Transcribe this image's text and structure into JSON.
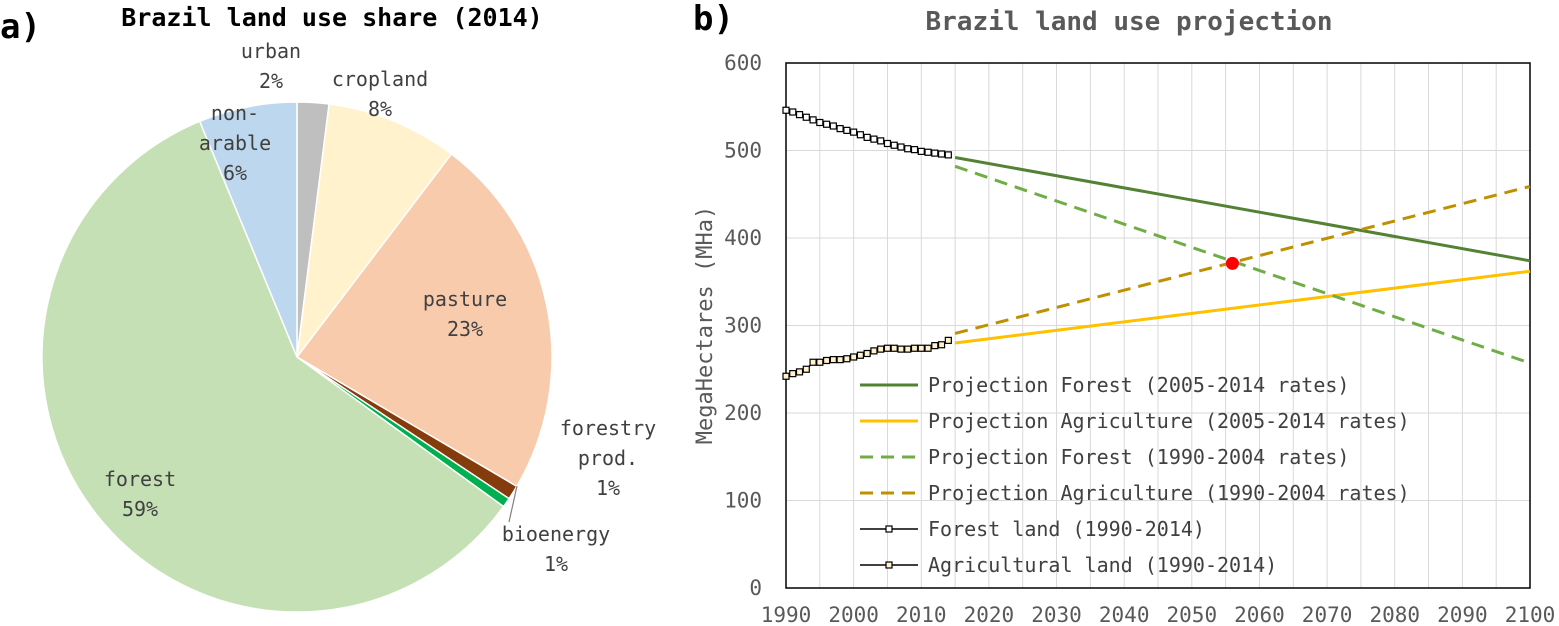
{
  "panels": {
    "a": "a)",
    "b": "b)"
  },
  "chart_data": [
    {
      "type": "pie",
      "title": "Brazil land use share (2014)",
      "slices": [
        {
          "label": [
            "urban",
            "2%"
          ],
          "value": 2,
          "color": "#BFBFBF"
        },
        {
          "label": [
            "cropland",
            "8%"
          ],
          "value": 8.3,
          "color": "#FFF2CC"
        },
        {
          "label": [
            "pasture",
            "23%"
          ],
          "value": 23,
          "color": "#F8CBAD"
        },
        {
          "label": [
            "forestry",
            "prod.",
            "1%"
          ],
          "value": 0.9,
          "color": "#843C0C"
        },
        {
          "label": [
            "bioenergy",
            "1%"
          ],
          "value": 0.6,
          "color": "#00B050"
        },
        {
          "label": [
            "forest",
            "59%"
          ],
          "value": 58.5,
          "color": "#C5E0B4"
        },
        {
          "label": [
            "non-",
            "arable",
            "6%"
          ],
          "value": 6.2,
          "color": "#BDD7EE"
        }
      ]
    },
    {
      "type": "line",
      "title": "Brazil land use projection",
      "ylabel": "MegaHectares (MHa)",
      "xlabel": "",
      "xlim": [
        1990,
        2100
      ],
      "ylim": [
        0,
        600
      ],
      "xticks": [
        "1990",
        "2000",
        "2010",
        "2020",
        "2030",
        "2040",
        "2050",
        "2060",
        "2070",
        "2080",
        "2090",
        "2100"
      ],
      "yticks": [
        "0",
        "100",
        "200",
        "300",
        "400",
        "500",
        "600"
      ],
      "grid": true,
      "legend_position": "lower-left",
      "series": [
        {
          "name": "Projection Forest (2005-2014 rates)",
          "color": "#548235",
          "style": "solid",
          "marker": "none",
          "x": [
            2015,
            2100
          ],
          "y": [
            492,
            374
          ]
        },
        {
          "name": "Projection Agriculture (2005-2014 rates)",
          "color": "#FFC000",
          "style": "solid",
          "marker": "none",
          "x": [
            2015,
            2100
          ],
          "y": [
            280,
            362
          ]
        },
        {
          "name": "Projection Forest (1990-2004 rates)",
          "color": "#70AD47",
          "style": "dashed",
          "marker": "none",
          "x": [
            2015,
            2100
          ],
          "y": [
            482,
            257
          ]
        },
        {
          "name": "Projection Agriculture (1990-2004 rates)",
          "color": "#BF9000",
          "style": "dashed",
          "marker": "none",
          "x": [
            2015,
            2100
          ],
          "y": [
            291,
            459
          ]
        },
        {
          "name": "Forest land (1990-2014)",
          "color": "#000000",
          "style": "solid",
          "marker": "square",
          "marker_fill": "#FFFFFF",
          "x": [
            1990,
            1991,
            1992,
            1993,
            1994,
            1995,
            1996,
            1997,
            1998,
            1999,
            2000,
            2001,
            2002,
            2003,
            2004,
            2005,
            2006,
            2007,
            2008,
            2009,
            2010,
            2011,
            2012,
            2013,
            2014
          ],
          "y": [
            546,
            544,
            541,
            538,
            535,
            532,
            530,
            528,
            525,
            523,
            521,
            518,
            515,
            513,
            511,
            508,
            506,
            504,
            502,
            501,
            499,
            498,
            497,
            496,
            495
          ]
        },
        {
          "name": "Agricultural land (1990-2014)",
          "color": "#000000",
          "style": "solid",
          "marker": "square",
          "marker_fill": "#FFF2CC",
          "x": [
            1990,
            1991,
            1992,
            1993,
            1994,
            1995,
            1996,
            1997,
            1998,
            1999,
            2000,
            2001,
            2002,
            2003,
            2004,
            2005,
            2006,
            2007,
            2008,
            2009,
            2010,
            2011,
            2012,
            2013,
            2014
          ],
          "y": [
            242,
            245,
            247,
            250,
            258,
            258,
            260,
            261,
            261,
            262,
            264,
            266,
            268,
            271,
            273,
            274,
            274,
            273,
            273,
            274,
            274,
            274,
            277,
            278,
            283
          ]
        }
      ],
      "highlight_point": {
        "x": 2056,
        "y": 371,
        "color": "#FF0000"
      }
    }
  ]
}
